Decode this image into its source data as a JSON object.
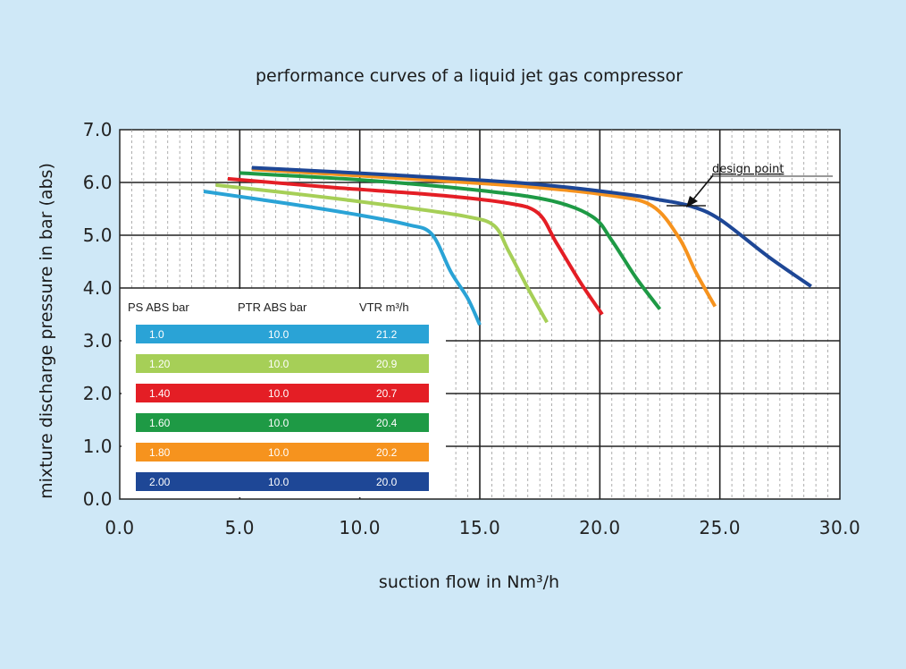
{
  "chart_data": {
    "type": "line",
    "title": "performance curves of a liquid jet gas compressor",
    "xlabel": "suction flow in Nm³/h",
    "ylabel": "mixture discharge pressure in bar (abs)",
    "xlim": [
      0,
      30
    ],
    "ylim": [
      0,
      7
    ],
    "x_ticks": [
      "0.0",
      "5.0",
      "10.0",
      "15.0",
      "20.0",
      "25.0",
      "30.0"
    ],
    "y_ticks": [
      "0.0",
      "1.0",
      "2.0",
      "3.0",
      "4.0",
      "5.0",
      "6.0",
      "7.0"
    ],
    "grid": true,
    "legend": {
      "placement": "bottom-left",
      "headers": [
        "PS ABS bar",
        "PTR ABS bar",
        "VTR m³/h"
      ],
      "rows": [
        {
          "ps": "1.0",
          "ptr": "10.0",
          "vtr": "21.2",
          "color": "#2aa3d6"
        },
        {
          "ps": "1.20",
          "ptr": "10.0",
          "vtr": "20.9",
          "color": "#a6cf57"
        },
        {
          "ps": "1.40",
          "ptr": "10.0",
          "vtr": "20.7",
          "color": "#e41e25"
        },
        {
          "ps": "1.60",
          "ptr": "10.0",
          "vtr": "20.4",
          "color": "#1e9a45"
        },
        {
          "ps": "1.80",
          "ptr": "10.0",
          "vtr": "20.2",
          "color": "#f6931e"
        },
        {
          "ps": "2.00",
          "ptr": "10.0",
          "vtr": "20.0",
          "color": "#1e4796"
        }
      ]
    },
    "series": [
      {
        "color": "#2aa3d6",
        "points": [
          [
            3.5,
            5.83
          ],
          [
            7,
            5.6
          ],
          [
            10,
            5.38
          ],
          [
            12,
            5.2
          ],
          [
            13,
            5.02
          ],
          [
            13.8,
            4.3
          ],
          [
            14.5,
            3.8
          ],
          [
            15,
            3.3
          ]
        ]
      },
      {
        "color": "#a6cf57",
        "points": [
          [
            4,
            5.95
          ],
          [
            8,
            5.75
          ],
          [
            12,
            5.52
          ],
          [
            14.5,
            5.35
          ],
          [
            15.6,
            5.18
          ],
          [
            16.2,
            4.7
          ],
          [
            17,
            4
          ],
          [
            17.8,
            3.35
          ]
        ]
      },
      {
        "color": "#e41e25",
        "points": [
          [
            4.5,
            6.07
          ],
          [
            9,
            5.9
          ],
          [
            13,
            5.77
          ],
          [
            16,
            5.62
          ],
          [
            17.4,
            5.43
          ],
          [
            18.2,
            4.85
          ],
          [
            19.2,
            4.1
          ],
          [
            20.1,
            3.5
          ]
        ]
      },
      {
        "color": "#1e9a45",
        "points": [
          [
            5,
            6.18
          ],
          [
            10,
            6.05
          ],
          [
            15,
            5.85
          ],
          [
            18,
            5.65
          ],
          [
            19.7,
            5.35
          ],
          [
            20.5,
            4.9
          ],
          [
            21.5,
            4.2
          ],
          [
            22.5,
            3.6
          ]
        ]
      },
      {
        "color": "#f6931e",
        "points": [
          [
            5.5,
            6.25
          ],
          [
            11,
            6.1
          ],
          [
            17,
            5.92
          ],
          [
            20.5,
            5.75
          ],
          [
            22.2,
            5.55
          ],
          [
            23.3,
            4.95
          ],
          [
            24,
            4.3
          ],
          [
            24.8,
            3.65
          ]
        ]
      },
      {
        "color": "#1e4796",
        "points": [
          [
            5.5,
            6.28
          ],
          [
            11,
            6.15
          ],
          [
            17,
            5.98
          ],
          [
            21,
            5.78
          ],
          [
            22.5,
            5.67
          ],
          [
            23.8,
            5.55
          ],
          [
            25,
            5.3
          ],
          [
            27,
            4.6
          ],
          [
            28.8,
            4.03
          ]
        ]
      }
    ],
    "annotations": [
      {
        "text": "design point",
        "x": 23.6,
        "y": 5.55
      }
    ]
  }
}
